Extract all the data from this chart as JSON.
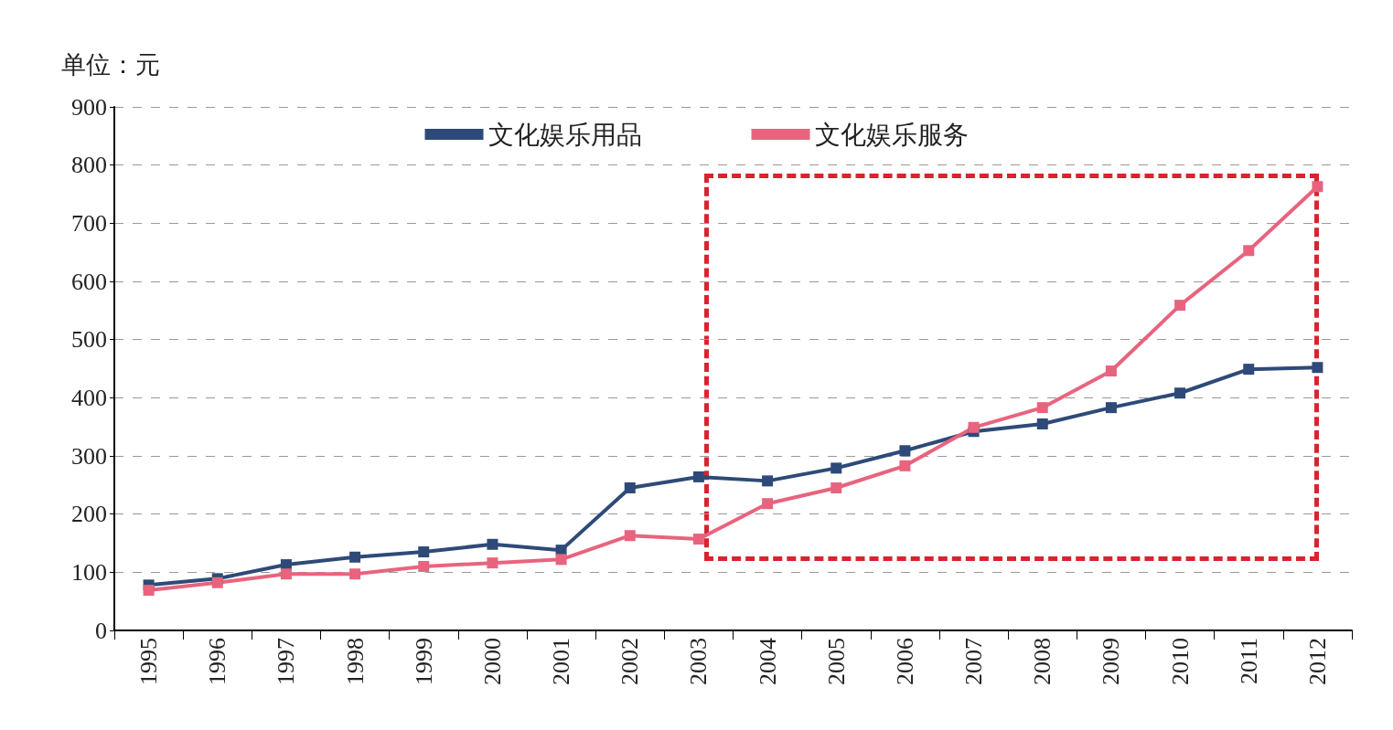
{
  "chart_data": {
    "type": "line",
    "ylabel": "单位：元",
    "categories": [
      "1995",
      "1996",
      "1997",
      "1998",
      "1999",
      "2000",
      "2001",
      "2002",
      "2003",
      "2004",
      "2005",
      "2006",
      "2007",
      "2008",
      "2009",
      "2010",
      "2011",
      "2012"
    ],
    "series": [
      {
        "name": "文化娱乐用品",
        "color": "#2e4a78",
        "values": [
          78,
          89,
          113,
          126,
          135,
          148,
          138,
          245,
          264,
          257,
          279,
          309,
          342,
          355,
          383,
          408,
          449,
          452
        ]
      },
      {
        "name": "文化娱乐服务",
        "color": "#e8647e",
        "values": [
          69,
          82,
          97,
          97,
          110,
          116,
          122,
          163,
          157,
          218,
          245,
          283,
          349,
          383,
          446,
          559,
          653,
          763
        ]
      }
    ],
    "ylim": [
      0,
      900
    ],
    "yticks": [
      0,
      100,
      200,
      300,
      400,
      500,
      600,
      700,
      800,
      900
    ],
    "grid": "y",
    "legend": "top",
    "marker": "square",
    "line_style": "solid"
  }
}
